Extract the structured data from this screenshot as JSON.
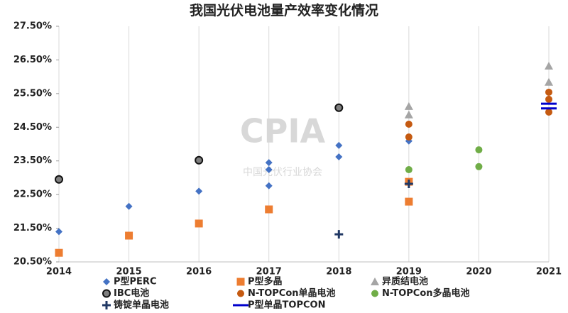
{
  "chart_data": {
    "type": "scatter",
    "title": "我国光伏电池量产效率变化情况",
    "watermark": "CPIA",
    "watermark_subtitle": "中国光伏行业协会",
    "xlim": [
      2014,
      2021
    ],
    "xticks": [
      2014,
      2015,
      2016,
      2017,
      2018,
      2019,
      2020,
      2021
    ],
    "ylim": [
      20.5,
      27.5
    ],
    "yticks": [
      {
        "value": 20.5,
        "label": "20.50%"
      },
      {
        "value": 21.5,
        "label": "21.50%"
      },
      {
        "value": 22.5,
        "label": "22.50%"
      },
      {
        "value": 23.5,
        "label": "23.50%"
      },
      {
        "value": 24.5,
        "label": "24.50%"
      },
      {
        "value": 25.5,
        "label": "25.50%"
      },
      {
        "value": 26.5,
        "label": "26.50%"
      },
      {
        "value": 27.5,
        "label": "27.50%"
      }
    ],
    "grid": "x",
    "series": [
      {
        "name": "P型PERC",
        "color": "#4472c4",
        "marker": "diamond",
        "x": [
          2014,
          2015,
          2016,
          2017,
          2017,
          2017,
          2018,
          2018,
          2019
        ],
        "values": [
          21.4,
          22.15,
          22.6,
          23.45,
          23.24,
          22.76,
          23.96,
          23.62,
          24.09
        ]
      },
      {
        "name": "P型多晶",
        "color": "#ed7d31",
        "marker": "square",
        "x": [
          2014,
          2015,
          2016,
          2017,
          2019,
          2019
        ],
        "values": [
          20.77,
          21.28,
          21.64,
          22.06,
          22.29,
          22.88
        ]
      },
      {
        "name": "异质结电池",
        "color": "#a5a5a5",
        "marker": "triangle",
        "x": [
          2019,
          2019,
          2021,
          2021
        ],
        "values": [
          25.12,
          24.87,
          26.32,
          25.84
        ]
      },
      {
        "name": "IBC电池",
        "color": "#404040",
        "marker": "circle",
        "x": [
          2014,
          2016,
          2018
        ],
        "values": [
          22.95,
          23.52,
          25.08
        ]
      },
      {
        "name": "N-TOPCon单晶电池",
        "color": "#c55a11",
        "marker": "circle",
        "x": [
          2019,
          2019,
          2021,
          2021,
          2021
        ],
        "values": [
          24.59,
          24.21,
          25.54,
          25.33,
          24.95
        ]
      },
      {
        "name": "N-TOPCon多晶电池",
        "color": "#70ad47",
        "marker": "circle",
        "x": [
          2019,
          2020,
          2020
        ],
        "values": [
          23.24,
          23.33,
          23.83
        ]
      },
      {
        "name": "铸锭单晶电池",
        "color": "#203864",
        "marker": "plus",
        "x": [
          2018,
          2019
        ],
        "values": [
          21.32,
          22.82
        ]
      },
      {
        "name": "P型单晶TOPCON",
        "color": "#0000cc",
        "marker": "dash",
        "x": [
          2021,
          2021
        ],
        "values": [
          25.2,
          25.06
        ]
      }
    ]
  }
}
